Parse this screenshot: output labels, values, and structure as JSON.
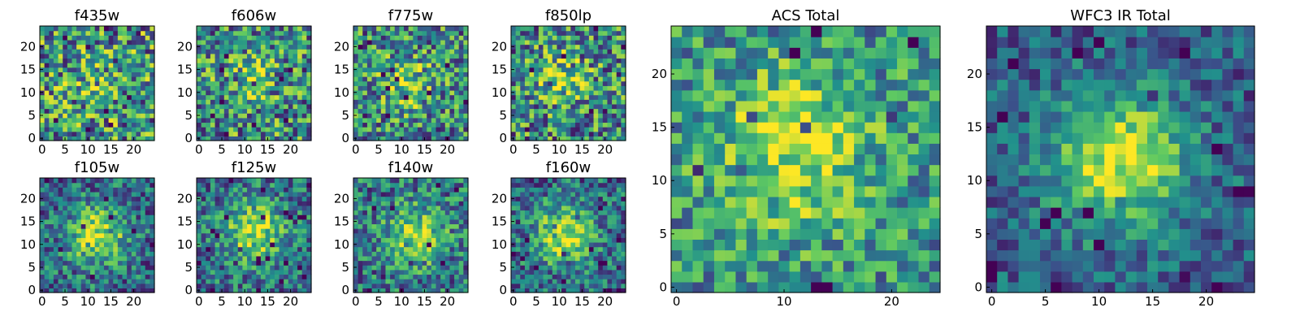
{
  "colormap": [
    "#440154",
    "#3b528b",
    "#21918c",
    "#5ec962",
    "#fde725"
  ],
  "chart_data": [
    {
      "type": "heatmap",
      "title": "f435w",
      "grid_size": 25,
      "center": [
        12,
        11
      ],
      "sigma": 4,
      "peak": 0.12,
      "noise": 0.45,
      "base": 0.52,
      "seed": 11,
      "x_ticks": [
        0,
        5,
        10,
        15,
        20
      ],
      "y_ticks": [
        0,
        5,
        10,
        15,
        20
      ],
      "xlim": [
        0,
        25
      ],
      "ylim": [
        0,
        25
      ]
    },
    {
      "type": "heatmap",
      "title": "f606w",
      "grid_size": 25,
      "center": [
        11,
        13
      ],
      "sigma": 4,
      "peak": 0.22,
      "noise": 0.42,
      "base": 0.5,
      "seed": 23,
      "x_ticks": [
        0,
        5,
        10,
        15,
        20
      ],
      "y_ticks": [
        0,
        5,
        10,
        15,
        20
      ],
      "xlim": [
        0,
        25
      ],
      "ylim": [
        0,
        25
      ]
    },
    {
      "type": "heatmap",
      "title": "f775w",
      "grid_size": 25,
      "center": [
        11,
        12
      ],
      "sigma": 4,
      "peak": 0.3,
      "noise": 0.4,
      "base": 0.48,
      "seed": 37,
      "x_ticks": [
        0,
        5,
        10,
        15,
        20
      ],
      "y_ticks": [
        0,
        5,
        10,
        15,
        20
      ],
      "xlim": [
        0,
        25
      ],
      "ylim": [
        0,
        25
      ]
    },
    {
      "type": "heatmap",
      "title": "f850lp",
      "grid_size": 25,
      "center": [
        11,
        13
      ],
      "sigma": 4,
      "peak": 0.3,
      "noise": 0.42,
      "base": 0.48,
      "seed": 41,
      "x_ticks": [
        0,
        5,
        10,
        15,
        20
      ],
      "y_ticks": [
        0,
        5,
        10,
        15,
        20
      ],
      "xlim": [
        0,
        25
      ],
      "ylim": [
        0,
        25
      ]
    },
    {
      "type": "heatmap",
      "title": "f105w",
      "grid_size": 25,
      "center": [
        12,
        12
      ],
      "sigma": 4.5,
      "peak": 0.55,
      "noise": 0.3,
      "base": 0.35,
      "seed": 53,
      "x_ticks": [
        0,
        5,
        10,
        15,
        20
      ],
      "y_ticks": [
        0,
        5,
        10,
        15,
        20
      ],
      "xlim": [
        0,
        25
      ],
      "ylim": [
        0,
        25
      ]
    },
    {
      "type": "heatmap",
      "title": "f125w",
      "grid_size": 25,
      "center": [
        12,
        13
      ],
      "sigma": 4.5,
      "peak": 0.5,
      "noise": 0.3,
      "base": 0.38,
      "seed": 67,
      "x_ticks": [
        0,
        5,
        10,
        15,
        20
      ],
      "y_ticks": [
        0,
        5,
        10,
        15,
        20
      ],
      "xlim": [
        0,
        25
      ],
      "ylim": [
        0,
        25
      ]
    },
    {
      "type": "heatmap",
      "title": "f140w",
      "grid_size": 25,
      "center": [
        13,
        12
      ],
      "sigma": 4.5,
      "peak": 0.45,
      "noise": 0.32,
      "base": 0.4,
      "seed": 79,
      "x_ticks": [
        0,
        5,
        10,
        15,
        20
      ],
      "y_ticks": [
        0,
        5,
        10,
        15,
        20
      ],
      "xlim": [
        0,
        25
      ],
      "ylim": [
        0,
        25
      ]
    },
    {
      "type": "heatmap",
      "title": "f160w",
      "grid_size": 25,
      "center": [
        11,
        12
      ],
      "sigma": 4.5,
      "peak": 0.55,
      "noise": 0.3,
      "base": 0.35,
      "seed": 83,
      "x_ticks": [
        0,
        5,
        10,
        15,
        20
      ],
      "y_ticks": [
        0,
        5,
        10,
        15,
        20
      ],
      "xlim": [
        0,
        25
      ],
      "ylim": [
        0,
        25
      ]
    },
    {
      "type": "heatmap",
      "title": "ACS Total",
      "grid_size": 25,
      "center": [
        11,
        13
      ],
      "sigma": 5,
      "peak": 0.4,
      "noise": 0.3,
      "base": 0.5,
      "seed": 97,
      "x_ticks": [
        0,
        10,
        20
      ],
      "y_ticks": [
        0,
        5,
        10,
        15,
        20
      ],
      "xlim": [
        0,
        25
      ],
      "ylim": [
        0,
        25
      ]
    },
    {
      "type": "heatmap",
      "title": "WFC3 IR Total",
      "grid_size": 25,
      "center": [
        12,
        12
      ],
      "sigma": 4.5,
      "peak": 0.65,
      "noise": 0.22,
      "base": 0.3,
      "seed": 101,
      "x_ticks": [
        0,
        5,
        10,
        15,
        20
      ],
      "y_ticks": [
        0,
        5,
        10,
        15,
        20
      ],
      "xlim": [
        0,
        25
      ],
      "ylim": [
        0,
        25
      ]
    }
  ]
}
